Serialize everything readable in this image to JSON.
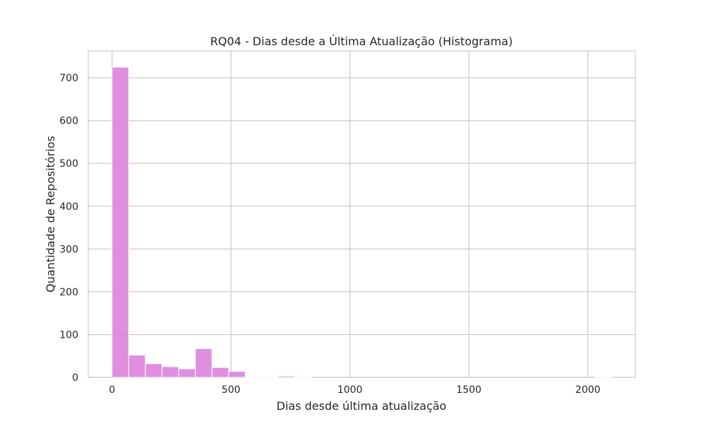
{
  "chart_data": {
    "type": "bar",
    "title": "RQ04 - Dias desde a Última Atualização (Histograma)",
    "xlabel": "Dias desde última atualização",
    "ylabel": "Quantidade de Repositórios",
    "xlim": [
      -100,
      2200
    ],
    "ylim": [
      0,
      763
    ],
    "x_ticks": [
      0,
      500,
      1000,
      1500,
      2000
    ],
    "y_ticks": [
      0,
      100,
      200,
      300,
      400,
      500,
      600,
      700
    ],
    "grid": true,
    "bin_width": 70,
    "bin_starts": [
      0,
      70,
      140,
      210,
      280,
      350,
      420,
      490,
      560,
      630,
      700,
      770,
      840,
      910,
      980,
      1050,
      1120,
      1190,
      1260,
      1330,
      1400,
      1470,
      1540,
      1610,
      1680,
      1750,
      1820,
      1890,
      1960,
      2030
    ],
    "values": [
      725,
      52,
      32,
      25,
      20,
      67,
      23,
      14,
      1,
      1,
      3,
      1,
      0,
      0,
      0,
      0,
      0,
      0,
      0,
      0,
      0,
      0,
      0,
      0,
      0,
      0,
      0,
      0,
      0,
      1
    ],
    "colors": {
      "bar_fill": "#da7bda",
      "bar_edge": "#ffffff",
      "grid": "#cccccc",
      "spine": "#cccccc",
      "text": "#262626"
    }
  }
}
